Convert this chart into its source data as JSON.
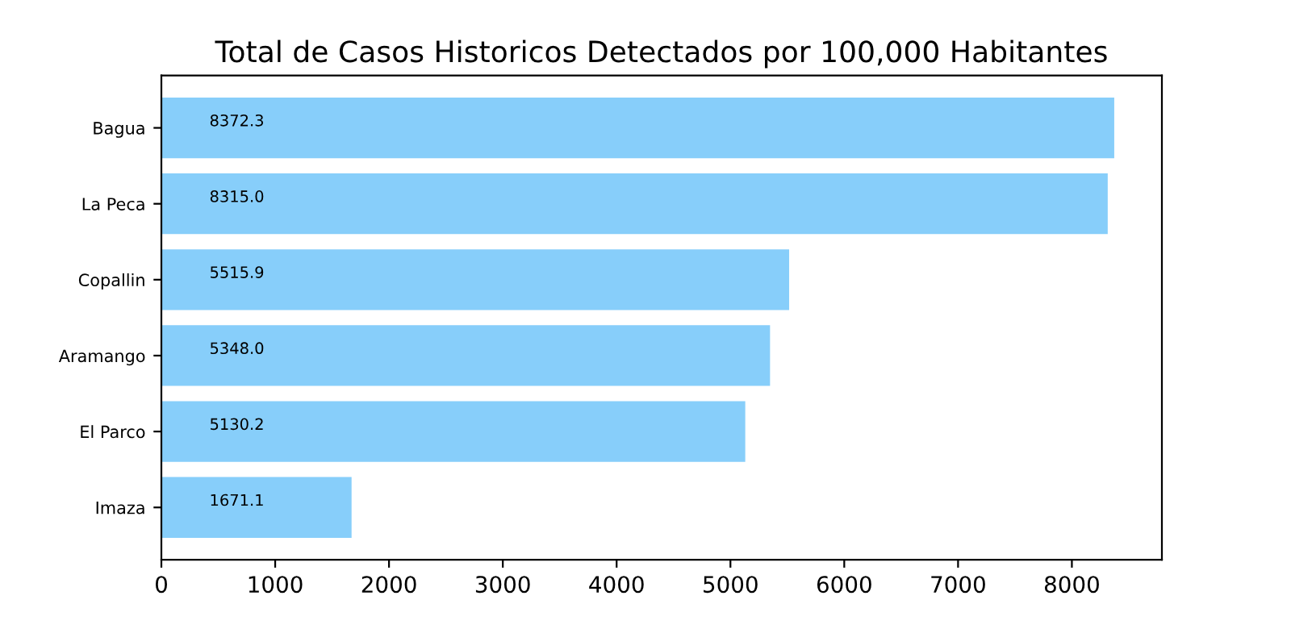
{
  "chart_data": {
    "type": "bar",
    "orientation": "horizontal",
    "title": "Total de Casos Historicos Detectados por 100,000 Habitantes",
    "categories": [
      "Bagua",
      "La Peca",
      "Copallin",
      "Aramango",
      "El Parco",
      "Imaza"
    ],
    "values": [
      8372.3,
      8315.0,
      5515.9,
      5348.0,
      5130.2,
      1671.1
    ],
    "value_labels": [
      "8372.3",
      "8315.0",
      "5515.9",
      "5348.0",
      "5130.2",
      "1671.1"
    ],
    "color": "#87cefa",
    "xlim": [
      0,
      8791
    ],
    "xticks": [
      0,
      1000,
      2000,
      3000,
      4000,
      5000,
      6000,
      7000,
      8000
    ],
    "grid": false
  }
}
